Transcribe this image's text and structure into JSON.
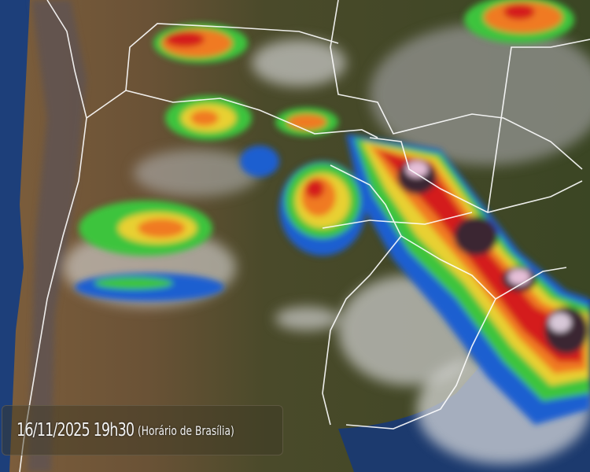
{
  "timestamp": {
    "datetime": "16/11/2025 19h30",
    "timezone_note": "(Horário de Brasília)"
  },
  "imagery": {
    "type": "satellite infrared enhanced with cloud-top temperature color scale",
    "colors": {
      "ocean": "#1d3f7a",
      "land_mountains": "#7a5a3a",
      "land_lowland": "#3d4a26",
      "cloud": "#c8c8c8",
      "scale_blue": "#1e5fd0",
      "scale_green": "#3cc43c",
      "scale_yellow": "#e8d030",
      "scale_orange": "#f07a20",
      "scale_red": "#d41e1e",
      "scale_dark": "#3a2630",
      "scale_pink": "#e6c0d8",
      "borders": "#ffffff"
    }
  }
}
